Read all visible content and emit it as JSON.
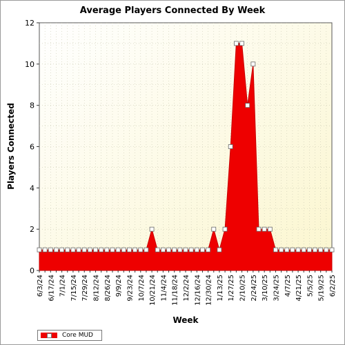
{
  "chart_data": {
    "type": "area",
    "title": "Average Players Connected By Week",
    "xlabel": "Week",
    "ylabel": "Players Connected",
    "ylim": [
      0,
      12
    ],
    "yticks": [
      0,
      2,
      4,
      6,
      8,
      10,
      12
    ],
    "x": [
      "6/3/24",
      "6/10/24",
      "6/17/24",
      "6/24/24",
      "7/1/24",
      "7/8/24",
      "7/15/24",
      "7/22/24",
      "7/29/24",
      "8/5/24",
      "8/12/24",
      "8/19/24",
      "8/26/24",
      "9/2/24",
      "9/9/24",
      "9/16/24",
      "9/23/24",
      "9/30/24",
      "10/7/24",
      "10/14/24",
      "10/21/24",
      "10/28/24",
      "11/4/24",
      "11/11/24",
      "11/18/24",
      "11/25/24",
      "12/2/24",
      "12/9/24",
      "12/16/24",
      "12/23/24",
      "12/30/24",
      "1/6/25",
      "1/13/25",
      "1/20/25",
      "1/27/25",
      "2/3/25",
      "2/10/25",
      "2/17/25",
      "2/24/25",
      "3/3/25",
      "3/10/25",
      "3/17/25",
      "3/24/25",
      "3/31/25",
      "4/7/25",
      "4/14/25",
      "4/21/25",
      "4/28/25",
      "5/5/25",
      "5/12/25",
      "5/19/25",
      "5/26/25",
      "6/2/25"
    ],
    "xtick_labels": [
      "6/3/24",
      "6/17/24",
      "7/1/24",
      "7/15/24",
      "7/29/24",
      "8/12/24",
      "8/26/24",
      "9/9/24",
      "9/23/24",
      "10/7/24",
      "10/21/24",
      "11/4/24",
      "11/18/24",
      "12/2/24",
      "12/16/24",
      "12/30/24",
      "1/13/25",
      "1/27/25",
      "2/10/25",
      "2/24/25",
      "3/10/25",
      "3/24/25",
      "4/7/25",
      "4/21/25",
      "5/5/25",
      "5/19/25",
      "6/2/25"
    ],
    "series": [
      {
        "name": "Core MUD",
        "values": [
          1,
          1,
          1,
          1,
          1,
          1,
          1,
          1,
          1,
          1,
          1,
          1,
          1,
          1,
          1,
          1,
          1,
          1,
          1,
          1,
          2,
          1,
          1,
          1,
          1,
          1,
          1,
          1,
          1,
          1,
          1,
          2,
          1,
          2,
          6,
          11,
          11,
          8,
          10,
          2,
          2,
          2,
          1,
          1,
          1,
          1,
          1,
          1,
          1,
          1,
          1,
          1,
          1
        ]
      }
    ],
    "grid": true,
    "legend": "bottom-left"
  },
  "colors": {
    "area_fill": "#ee0000",
    "area_line": "#c80000",
    "plot_background": "#ffffdc",
    "grid": "#c8c8b0"
  }
}
